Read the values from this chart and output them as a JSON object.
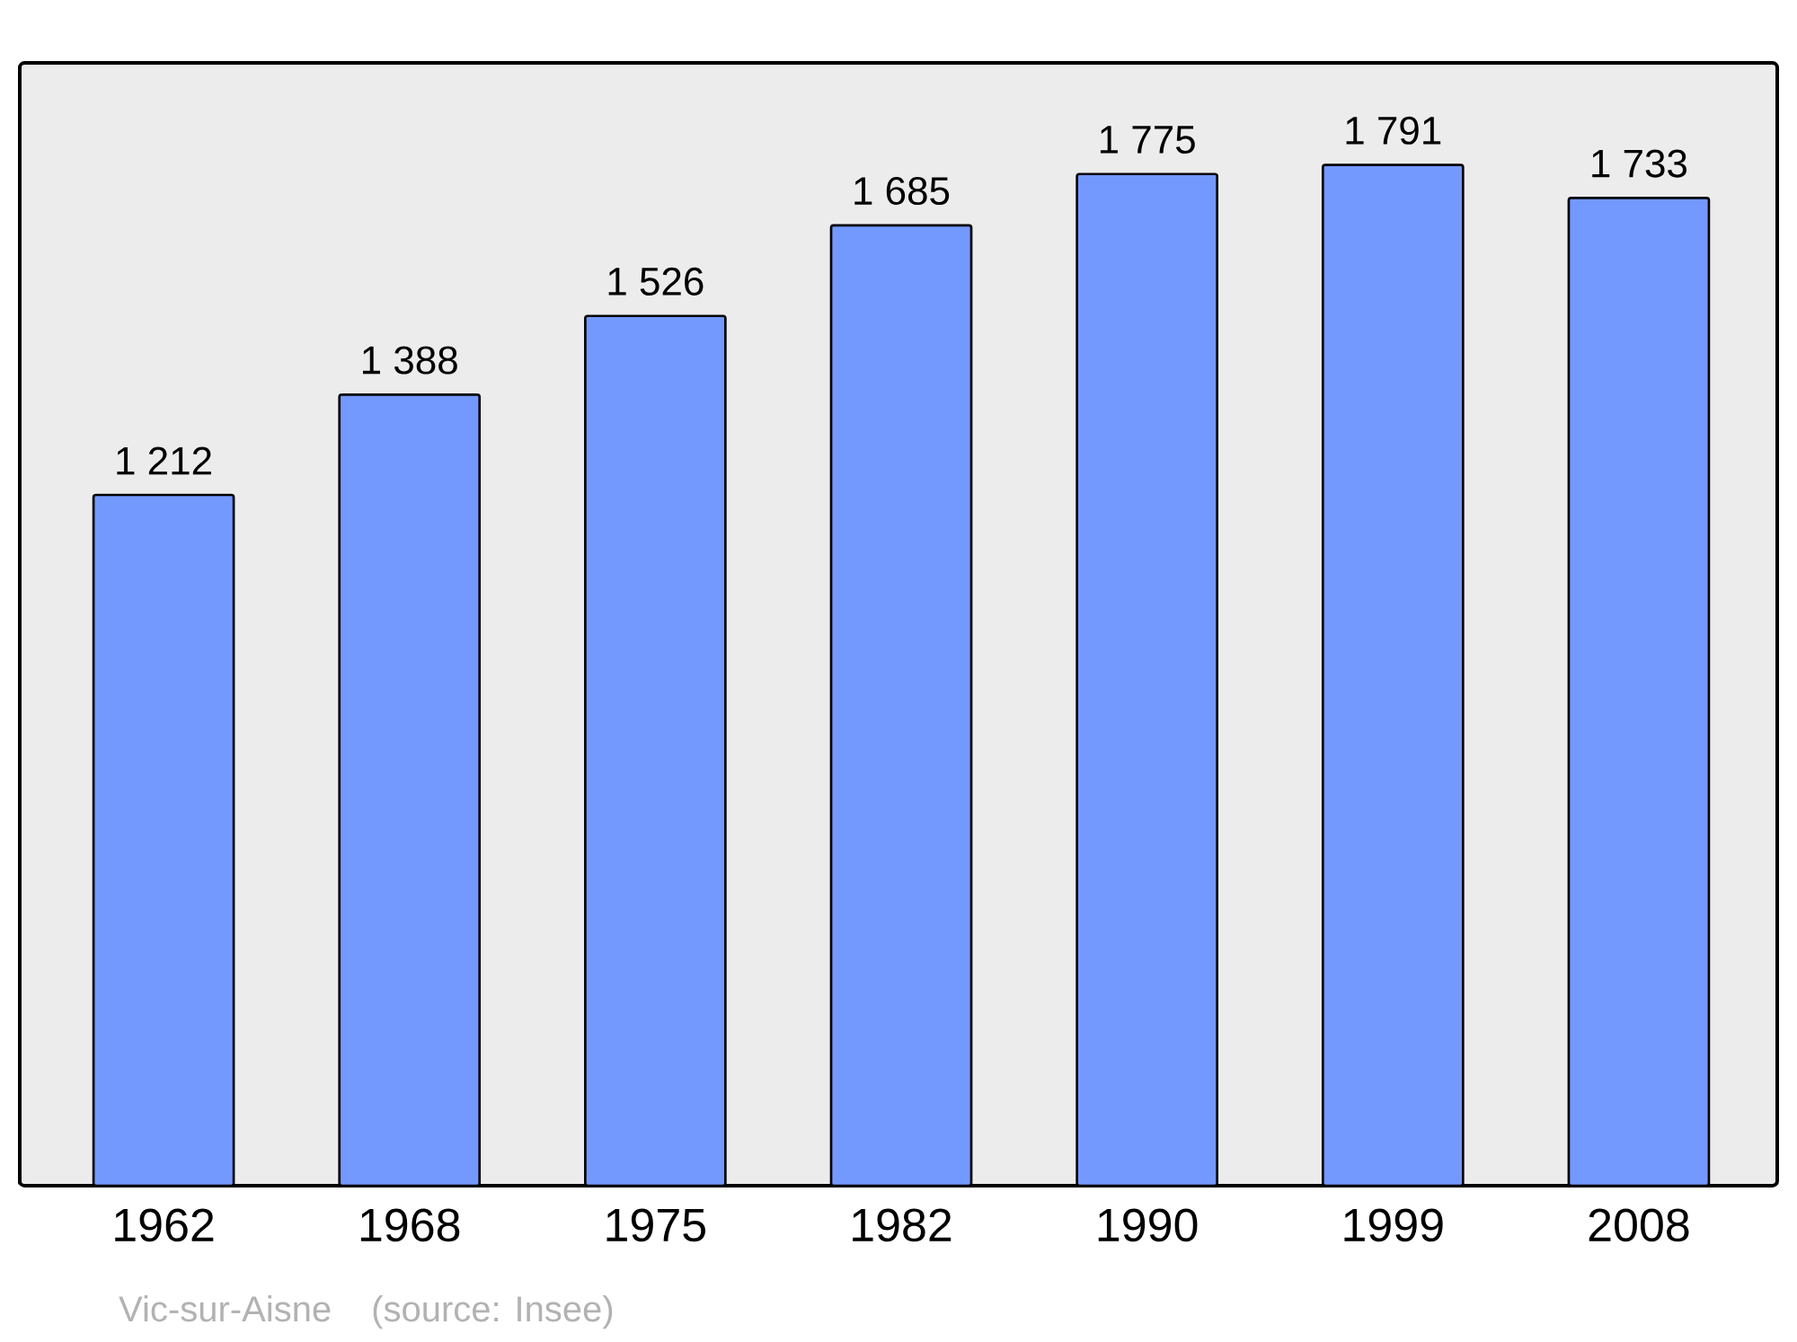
{
  "chart_data": {
    "type": "bar",
    "categories": [
      "1962",
      "1968",
      "1975",
      "1982",
      "1990",
      "1999",
      "2008"
    ],
    "values": [
      1212,
      1388,
      1526,
      1685,
      1775,
      1791,
      1733
    ],
    "value_labels": [
      "1 212",
      "1 388",
      "1 526",
      "1 685",
      "1 775",
      "1 791",
      "1 733"
    ],
    "color": "#7399ff",
    "annotations": [
      "Vic-sur-Aisne",
      "(source: Insee)"
    ]
  }
}
